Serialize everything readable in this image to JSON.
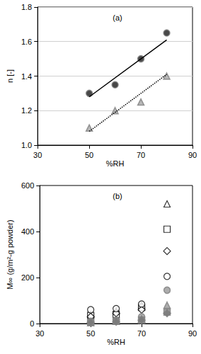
{
  "chart_data": [
    {
      "type": "scatter",
      "annotation": "(a)",
      "x_label": "%RH",
      "y_label": "n [-]",
      "xlim": [
        30,
        90
      ],
      "xticks": [
        30,
        50,
        70,
        90
      ],
      "ylim": [
        1.0,
        1.8
      ],
      "yticks": [
        {
          "value": 1.0,
          "label": "1.0"
        },
        {
          "value": 1.2,
          "label": "1.2"
        },
        {
          "value": 1.4,
          "label": "1.4"
        },
        {
          "value": 1.6,
          "label": "1.6"
        },
        {
          "value": 1.8,
          "label": "1.8"
        }
      ],
      "grid": true,
      "series": [
        {
          "type": "scatter",
          "marker": "circle",
          "color": "#1a1a1a",
          "x": [
            50,
            60,
            70,
            80
          ],
          "values": [
            1.3,
            1.35,
            1.5,
            1.65
          ]
        },
        {
          "type": "scatter",
          "marker": "triangle",
          "color": "#a6a6a6",
          "x": [
            50,
            60,
            70,
            80
          ],
          "values": [
            1.1,
            1.2,
            1.25,
            1.4
          ]
        },
        {
          "type": "line",
          "line_style": "solid",
          "color": "#000000",
          "x": [
            50,
            80
          ],
          "values": [
            1.28,
            1.61
          ]
        },
        {
          "type": "line",
          "line_style": "dotted",
          "color": "#000000",
          "x": [
            50,
            80
          ],
          "values": [
            1.08,
            1.41
          ]
        }
      ]
    },
    {
      "type": "scatter",
      "annotation": "(b)",
      "x_label": "%RH",
      "y_label": "M∞ (g/m²-g powder)",
      "xlim": [
        30,
        90
      ],
      "xticks": [
        30,
        50,
        70,
        90
      ],
      "ylim": [
        0,
        600
      ],
      "yticks": [
        0,
        200,
        400,
        600
      ],
      "grid": false,
      "series": [
        {
          "type": "scatter",
          "marker": "triangle-open",
          "color": "#000000",
          "x": [
            50,
            60,
            70,
            80
          ],
          "values": [
            40,
            55,
            80,
            520
          ]
        },
        {
          "type": "scatter",
          "marker": "square-open",
          "color": "#000000",
          "x": [
            50,
            60,
            70,
            80
          ],
          "values": [
            35,
            40,
            70,
            410
          ]
        },
        {
          "type": "scatter",
          "marker": "diamond-open",
          "color": "#000000",
          "x": [
            50,
            60,
            70,
            80
          ],
          "values": [
            30,
            45,
            60,
            315
          ]
        },
        {
          "type": "scatter",
          "marker": "circle-open",
          "color": "#000000",
          "x": [
            50,
            60,
            70,
            80
          ],
          "values": [
            60,
            65,
            85,
            205
          ]
        },
        {
          "type": "scatter",
          "marker": "circle",
          "color": "#999999",
          "x": [
            50,
            60,
            70,
            80
          ],
          "values": [
            10,
            15,
            30,
            145
          ]
        },
        {
          "type": "scatter",
          "marker": "triangle",
          "color": "#999999",
          "x": [
            50,
            60,
            70,
            80
          ],
          "values": [
            5,
            10,
            20,
            80
          ]
        },
        {
          "type": "scatter",
          "marker": "square",
          "color": "#888888",
          "x": [
            50,
            60,
            70,
            80
          ],
          "values": [
            5,
            10,
            15,
            50
          ]
        },
        {
          "type": "scatter",
          "marker": "diamond",
          "color": "#777777",
          "x": [
            50,
            60,
            70,
            80
          ],
          "values": [
            5,
            8,
            15,
            45
          ]
        }
      ]
    }
  ]
}
